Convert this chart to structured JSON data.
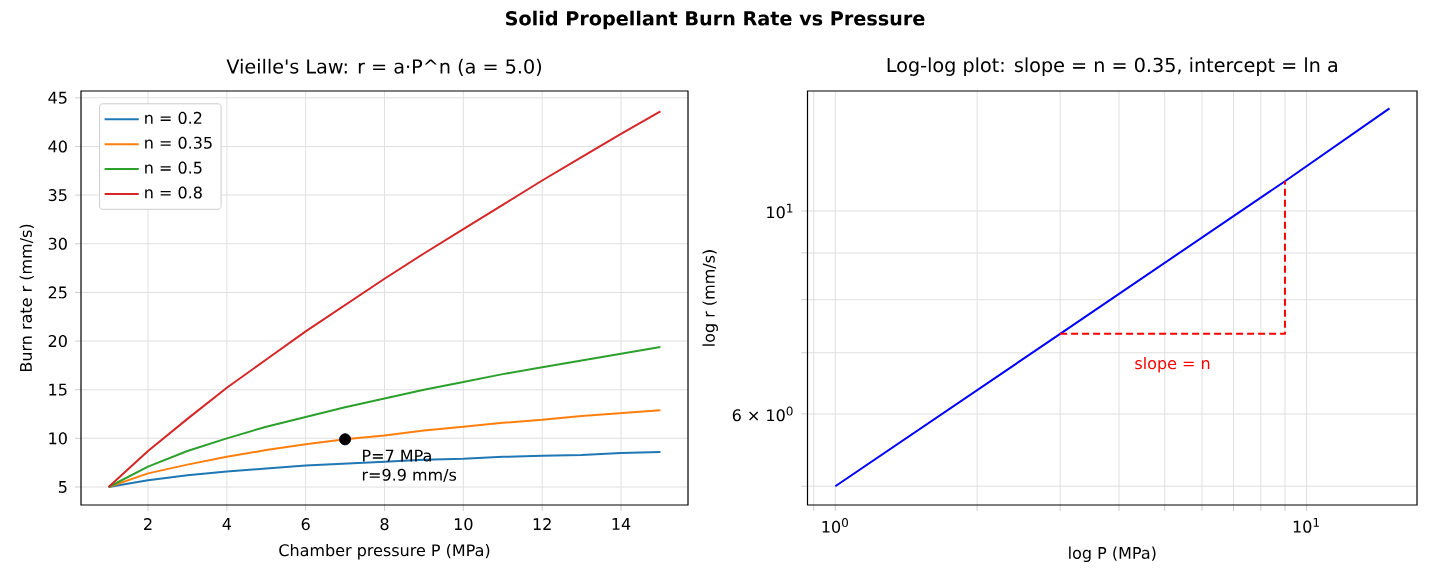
{
  "chart_data": [
    {
      "type": "line",
      "title": "Vieille's Law:  r = a·P^n   (a = 5.0)",
      "xlabel": "Chamber pressure P (MPa)",
      "ylabel": "Burn rate r (mm/s)",
      "x": [
        1,
        2,
        3,
        4,
        5,
        6,
        7,
        8,
        9,
        10,
        11,
        12,
        13,
        14,
        15
      ],
      "series": [
        {
          "name": "n = 0.2",
          "color": "#1f77b4",
          "values": [
            5,
            5.7,
            6.2,
            6.6,
            6.9,
            7.2,
            7.4,
            7.6,
            7.8,
            7.9,
            8.1,
            8.2,
            8.3,
            8.5,
            8.6
          ]
        },
        {
          "name": "n = 0.35",
          "color": "#ff7f0e",
          "values": [
            5,
            6.4,
            7.3,
            8.1,
            8.8,
            9.4,
            9.9,
            10.3,
            10.8,
            11.2,
            11.6,
            11.9,
            12.3,
            12.6,
            12.9
          ]
        },
        {
          "name": "n = 0.5",
          "color": "#2ca02c",
          "values": [
            5,
            7.1,
            8.7,
            10,
            11.2,
            12.2,
            13.2,
            14.1,
            15,
            15.8,
            16.6,
            17.3,
            18,
            18.7,
            19.4
          ]
        },
        {
          "name": "n = 0.8",
          "color": "#d62728",
          "values": [
            5,
            8.7,
            12,
            15.2,
            18.1,
            21,
            23.7,
            26.4,
            29,
            31.5,
            34,
            36.5,
            38.9,
            41.3,
            43.6
          ]
        },
        {
          "type": "scatter",
          "marker": "circle",
          "color": "#000000",
          "x": [
            7
          ],
          "values": [
            9.9
          ]
        }
      ],
      "xlim": [
        0.3,
        15.7
      ],
      "ylim": [
        3.15,
        45.7
      ],
      "xticks": [
        2,
        4,
        6,
        8,
        10,
        12,
        14
      ],
      "yticks": [
        5,
        10,
        15,
        20,
        25,
        30,
        35,
        40,
        45
      ],
      "grid": true,
      "legend": "top left",
      "annotations": [
        "Solid Propellant Burn Rate vs Pressure",
        {
          "text": "P=7 MPa",
          "x": 7,
          "y": 9.9
        },
        {
          "text": "r=9.9 mm/s",
          "x": 7,
          "y": 9.9
        }
      ]
    },
    {
      "type": "line",
      "title": "Log-log plot: slope = n = 0.35,  intercept = ln a",
      "xlabel": "log P (MPa)",
      "ylabel": "log r (mm/s)",
      "series": [
        {
          "color": "#0000ff",
          "x": [
            1,
            3,
            9,
            15
          ],
          "values": [
            5,
            7.34,
            10.78,
            12.95
          ]
        },
        {
          "color": "#ff0000",
          "line_style": "dashed",
          "x": [
            3,
            9,
            9
          ],
          "values": [
            7.34,
            7.34,
            10.78
          ]
        }
      ],
      "log": "xy",
      "xlim": [
        0.873,
        17.16
      ],
      "ylim": [
        4.77,
        13.53
      ],
      "xticks": [
        {
          "value": 0.9,
          "label": null
        },
        {
          "value": 1,
          "label": "10$^{0}$"
        },
        {
          "value": 2,
          "label": null
        },
        {
          "value": 3,
          "label": null
        },
        {
          "value": 4,
          "label": null
        },
        {
          "value": 5,
          "label": null
        },
        {
          "value": 6,
          "label": null
        },
        {
          "value": 7,
          "label": null
        },
        {
          "value": 8,
          "label": null
        },
        {
          "value": 9,
          "label": null
        },
        {
          "value": 10,
          "label": "10$^{1}$"
        }
      ],
      "yticks": [
        {
          "value": 5,
          "label": null
        },
        {
          "value": 6,
          "label": "6 × 10$^{0}$"
        },
        {
          "value": 7,
          "label": null
        },
        {
          "value": 8,
          "label": null
        },
        {
          "value": 9,
          "label": null
        },
        {
          "value": 10,
          "label": "10$^{1}$"
        }
      ],
      "grid": true,
      "annotations": [
        "slope = n"
      ]
    }
  ]
}
